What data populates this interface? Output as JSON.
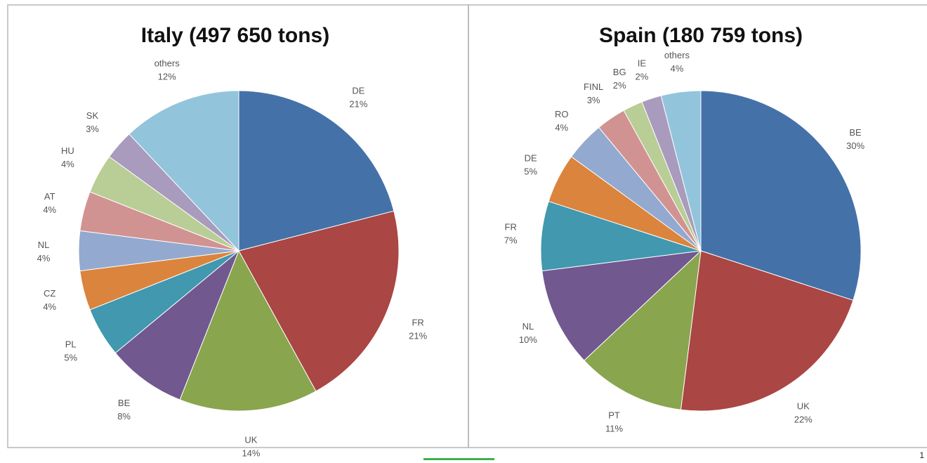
{
  "corner_text": "1",
  "chart_data": [
    {
      "type": "pie",
      "title": "Italy  (497 650 tons)",
      "start_angle_deg": 0,
      "direction": "clockwise",
      "slices": [
        {
          "label": "DE",
          "value": 21,
          "pct_label": "21%",
          "color": "#4472a8"
        },
        {
          "label": "FR",
          "value": 21,
          "pct_label": "21%",
          "color": "#aa4643"
        },
        {
          "label": "UK",
          "value": 14,
          "pct_label": "14%",
          "color": "#89a54e"
        },
        {
          "label": "BE",
          "value": 8,
          "pct_label": "8%",
          "color": "#71588f"
        },
        {
          "label": "PL",
          "value": 5,
          "pct_label": "5%",
          "color": "#4198af"
        },
        {
          "label": "CZ",
          "value": 4,
          "pct_label": "4%",
          "color": "#db843d"
        },
        {
          "label": "NL",
          "value": 4,
          "pct_label": "4%",
          "color": "#93a9cf"
        },
        {
          "label": "AT",
          "value": 4,
          "pct_label": "4%",
          "color": "#d19392"
        },
        {
          "label": "HU",
          "value": 4,
          "pct_label": "4%",
          "color": "#b9cd96"
        },
        {
          "label": "SK",
          "value": 3,
          "pct_label": "3%",
          "color": "#a99bbd"
        },
        {
          "label": "others",
          "value": 12,
          "pct_label": "12%",
          "color": "#92c5dc"
        }
      ]
    },
    {
      "type": "pie",
      "title": "Spain (180 759 tons)",
      "start_angle_deg": 0,
      "direction": "clockwise",
      "slices": [
        {
          "label": "BE",
          "value": 30,
          "pct_label": "30%",
          "color": "#4472a8"
        },
        {
          "label": "UK",
          "value": 22,
          "pct_label": "22%",
          "color": "#aa4643"
        },
        {
          "label": "PT",
          "value": 11,
          "pct_label": "11%",
          "color": "#89a54e"
        },
        {
          "label": "NL",
          "value": 10,
          "pct_label": "10%",
          "color": "#71588f"
        },
        {
          "label": "FR",
          "value": 7,
          "pct_label": "7%",
          "color": "#4198af"
        },
        {
          "label": "DE",
          "value": 5,
          "pct_label": "5%",
          "color": "#db843d"
        },
        {
          "label": "RO",
          "value": 4,
          "pct_label": "4%",
          "color": "#93a9cf"
        },
        {
          "label": "FINL",
          "value": 3,
          "pct_label": "3%",
          "color": "#d19392"
        },
        {
          "label": "BG",
          "value": 2,
          "pct_label": "2%",
          "color": "#b9cd96"
        },
        {
          "label": "IE",
          "value": 2,
          "pct_label": "2%",
          "color": "#a99bbd"
        },
        {
          "label": "others",
          "value": 4,
          "pct_label": "4%",
          "color": "#92c5dc"
        }
      ]
    }
  ]
}
